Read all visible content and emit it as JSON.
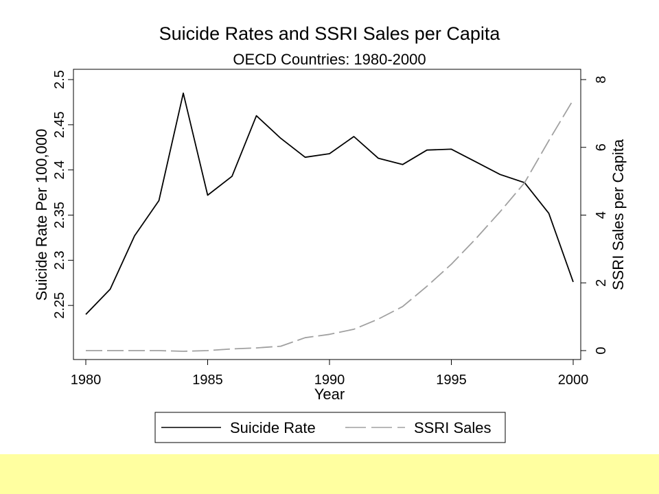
{
  "chart_data": {
    "type": "line",
    "title": "Suicide Rates and SSRI Sales per Capita",
    "subtitle": "OECD Countries: 1980-2000",
    "xlabel": "Year",
    "ylabel_left": "Suicide Rate Per 100,000",
    "ylabel_right": "SSRI Sales per Capita",
    "x": [
      1980,
      1981,
      1982,
      1983,
      1984,
      1985,
      1986,
      1987,
      1988,
      1989,
      1990,
      1991,
      1992,
      1993,
      1994,
      1995,
      1996,
      1997,
      1998,
      1999,
      2000
    ],
    "xlim": [
      1980,
      2000
    ],
    "xticks": [
      "1980",
      "1985",
      "1990",
      "1995",
      "2000"
    ],
    "ylim_left": [
      2.2,
      2.5
    ],
    "yticks_left": [
      "2.25",
      "2.3",
      "2.35",
      "2.4",
      "2.45",
      "2.5"
    ],
    "ylim_right": [
      0,
      8
    ],
    "yticks_right": [
      "0",
      "2",
      "4",
      "6",
      "8"
    ],
    "series": [
      {
        "name": "Suicide Rate",
        "axis": "left",
        "style": "solid",
        "color": "#000000",
        "values": [
          2.24,
          2.268,
          2.327,
          2.366,
          2.485,
          2.372,
          2.393,
          2.46,
          2.435,
          2.414,
          2.418,
          2.437,
          2.413,
          2.406,
          2.422,
          2.423,
          2.409,
          2.395,
          2.386,
          2.352,
          2.276
        ]
      },
      {
        "name": "SSRI Sales",
        "axis": "right",
        "style": "dashed",
        "color": "#a0a0a0",
        "values": [
          0,
          0,
          0,
          0,
          -0.02,
          0,
          0.05,
          0.08,
          0.13,
          0.38,
          0.48,
          0.63,
          0.93,
          1.3,
          1.9,
          2.55,
          3.3,
          4.1,
          4.95,
          6.2,
          7.4
        ]
      }
    ],
    "legend_position": "bottom",
    "grid": false
  }
}
